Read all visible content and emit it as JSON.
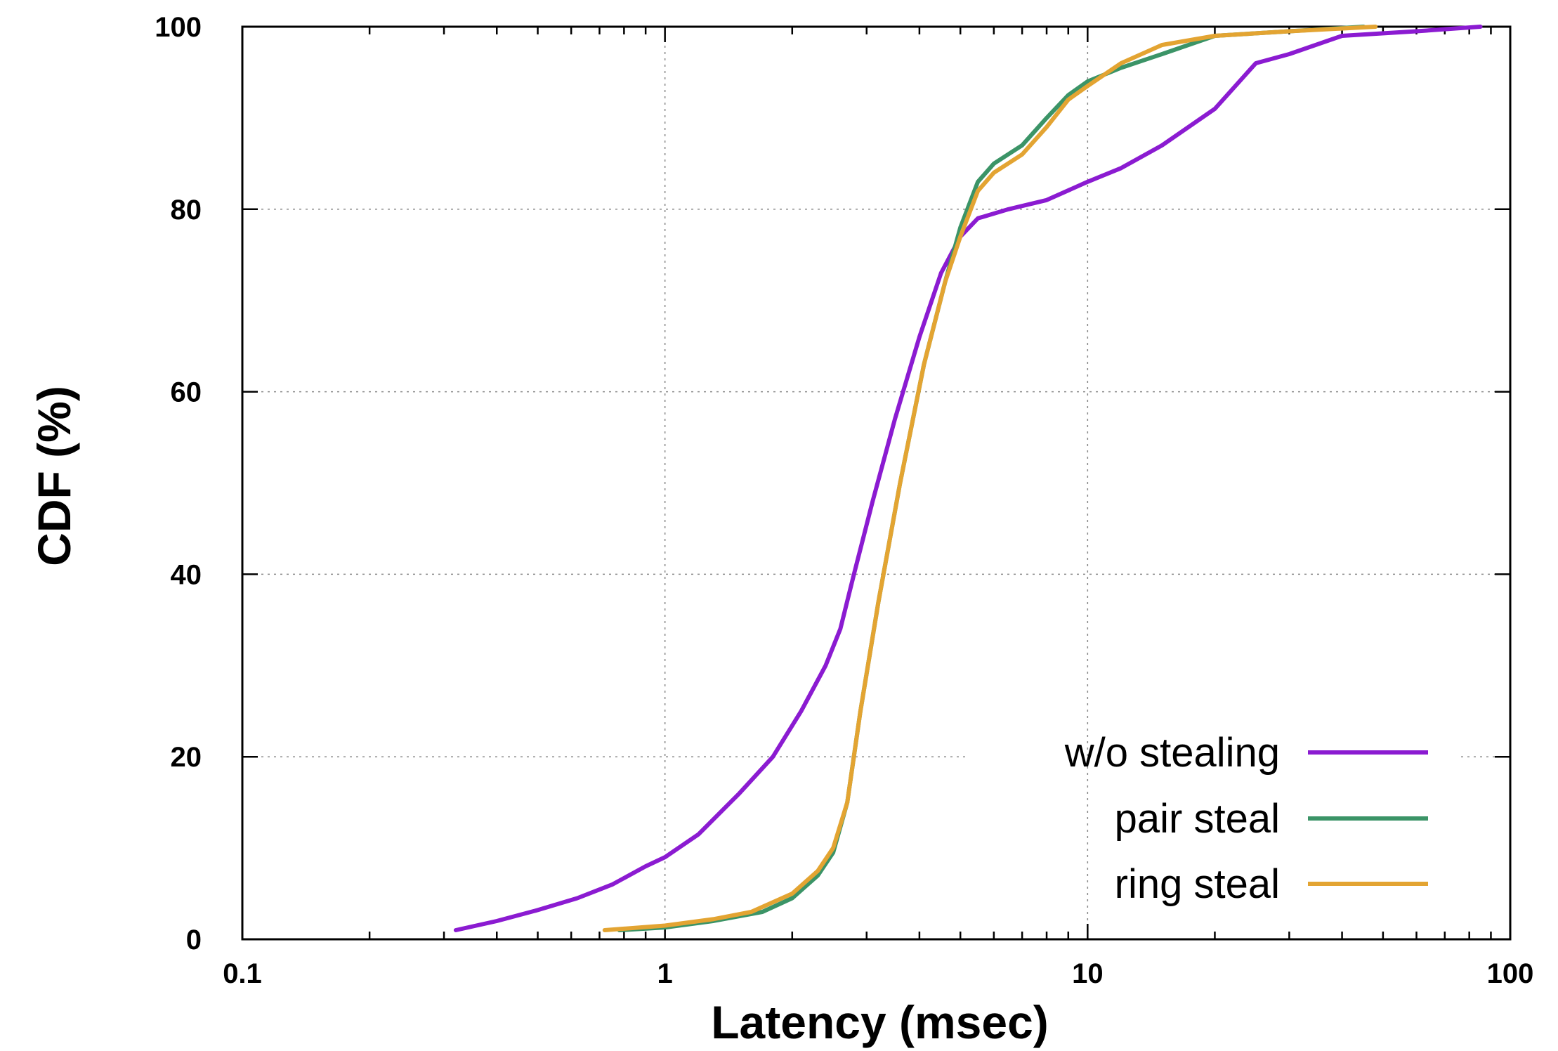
{
  "chart_data": {
    "type": "line",
    "title": "",
    "xlabel": "Latency (msec)",
    "ylabel": "CDF (%)",
    "xscale": "log",
    "xlim": [
      0.1,
      100
    ],
    "ylim": [
      0,
      100
    ],
    "xticks": [
      0.1,
      1,
      10,
      100
    ],
    "xtick_labels": [
      "0.1",
      "1",
      "10",
      "100"
    ],
    "yticks": [
      0,
      20,
      40,
      60,
      80,
      100
    ],
    "ytick_labels": [
      "0",
      "20",
      "40",
      "60",
      "80",
      "100"
    ],
    "grid": true,
    "legend_position": "bottom-right",
    "series": [
      {
        "name": "w/o stealing",
        "color": "#8b1bd1",
        "points": [
          [
            0.32,
            1
          ],
          [
            0.4,
            2
          ],
          [
            0.5,
            3.2
          ],
          [
            0.62,
            4.5
          ],
          [
            0.75,
            6
          ],
          [
            0.9,
            8
          ],
          [
            1.0,
            9
          ],
          [
            1.2,
            11.5
          ],
          [
            1.5,
            16
          ],
          [
            1.8,
            20
          ],
          [
            2.1,
            25
          ],
          [
            2.4,
            30
          ],
          [
            2.6,
            34
          ],
          [
            2.8,
            40
          ],
          [
            3.1,
            48
          ],
          [
            3.5,
            57
          ],
          [
            4.0,
            66
          ],
          [
            4.5,
            73
          ],
          [
            5.0,
            77
          ],
          [
            5.5,
            79
          ],
          [
            6.5,
            80
          ],
          [
            8.0,
            81
          ],
          [
            10.0,
            83
          ],
          [
            12.0,
            84.5
          ],
          [
            15.0,
            87
          ],
          [
            20.0,
            91
          ],
          [
            25.0,
            96
          ],
          [
            30.0,
            97
          ],
          [
            40.0,
            99
          ],
          [
            60.0,
            99.5
          ],
          [
            85.0,
            100
          ]
        ]
      },
      {
        "name": "pair steal",
        "color": "#3b9467",
        "points": [
          [
            0.78,
            1
          ],
          [
            1.0,
            1.3
          ],
          [
            1.3,
            2
          ],
          [
            1.7,
            3
          ],
          [
            2.0,
            4.5
          ],
          [
            2.3,
            7
          ],
          [
            2.5,
            9.5
          ],
          [
            2.7,
            15
          ],
          [
            2.9,
            25
          ],
          [
            3.2,
            37
          ],
          [
            3.6,
            50
          ],
          [
            4.1,
            63
          ],
          [
            4.6,
            72
          ],
          [
            5.0,
            78
          ],
          [
            5.5,
            83
          ],
          [
            6.0,
            85
          ],
          [
            7.0,
            87
          ],
          [
            8.0,
            90
          ],
          [
            9.0,
            92.5
          ],
          [
            10.0,
            94
          ],
          [
            12.0,
            95.5
          ],
          [
            15.0,
            97
          ],
          [
            20.0,
            99
          ],
          [
            30.0,
            99.5
          ],
          [
            45.0,
            100
          ]
        ]
      },
      {
        "name": "ring steal",
        "color": "#e3a432",
        "points": [
          [
            0.72,
            1
          ],
          [
            1.0,
            1.5
          ],
          [
            1.3,
            2.2
          ],
          [
            1.6,
            3
          ],
          [
            2.0,
            5
          ],
          [
            2.3,
            7.5
          ],
          [
            2.5,
            10
          ],
          [
            2.7,
            15
          ],
          [
            2.9,
            25
          ],
          [
            3.2,
            37
          ],
          [
            3.6,
            50
          ],
          [
            4.1,
            63
          ],
          [
            4.6,
            72
          ],
          [
            5.0,
            77
          ],
          [
            5.5,
            82
          ],
          [
            6.0,
            84
          ],
          [
            7.0,
            86
          ],
          [
            8.0,
            89
          ],
          [
            9.0,
            92
          ],
          [
            10.0,
            93.5
          ],
          [
            12.0,
            96
          ],
          [
            15.0,
            98
          ],
          [
            20.0,
            99
          ],
          [
            30.0,
            99.5
          ],
          [
            48.0,
            100
          ]
        ]
      }
    ]
  }
}
